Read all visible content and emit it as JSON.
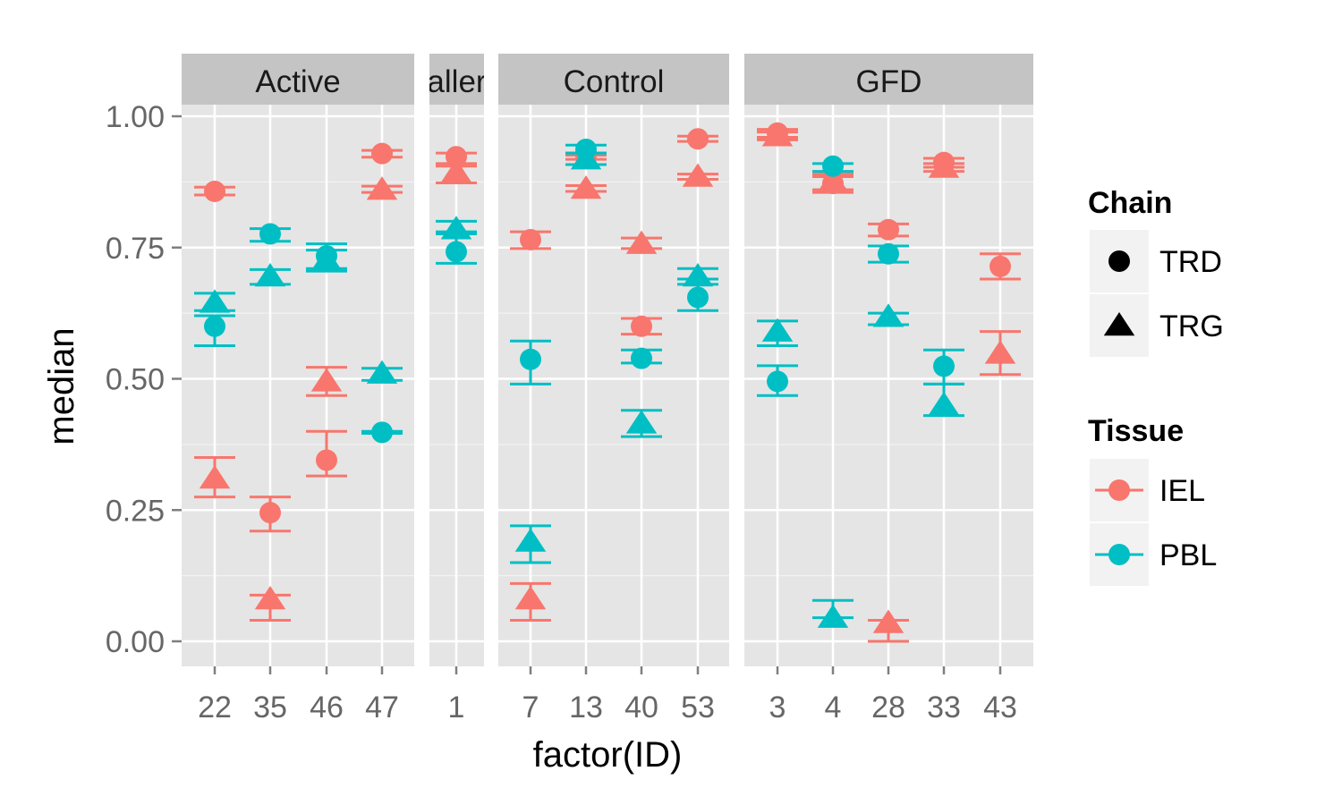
{
  "chart_data": {
    "type": "scatter",
    "title": "",
    "xlabel": "factor(ID)",
    "ylabel": "median",
    "ylim": [
      -0.05,
      1.1
    ],
    "yticks": [
      "0.00",
      "0.25",
      "0.50",
      "0.75",
      "1.00"
    ],
    "ytick_values": [
      0,
      0.25,
      0.5,
      0.75,
      1.0
    ],
    "grid": true,
    "legend_placement": "right",
    "colors": {
      "IEL": "#F8766D",
      "PBL": "#00BFC4"
    },
    "legends": [
      {
        "title": "Chain",
        "entries": [
          {
            "label": "TRD",
            "shape": "circle"
          },
          {
            "label": "TRG",
            "shape": "triangle"
          }
        ]
      },
      {
        "title": "Tissue",
        "entries": [
          {
            "label": "IEL",
            "color": "#F8766D"
          },
          {
            "label": "PBL",
            "color": "#00BFC4"
          }
        ]
      }
    ],
    "facets": [
      {
        "label": "Active",
        "categories": [
          "22",
          "35",
          "46",
          "47"
        ],
        "points": [
          {
            "id": "22",
            "chain": "TRD",
            "tissue": "IEL",
            "y": 0.857,
            "ymin": 0.85,
            "ymax": 0.865
          },
          {
            "id": "22",
            "chain": "TRG",
            "tissue": "IEL",
            "y": 0.31,
            "ymin": 0.275,
            "ymax": 0.35
          },
          {
            "id": "22",
            "chain": "TRD",
            "tissue": "PBL",
            "y": 0.6,
            "ymin": 0.563,
            "ymax": 0.62
          },
          {
            "id": "22",
            "chain": "TRG",
            "tissue": "PBL",
            "y": 0.645,
            "ymin": 0.63,
            "ymax": 0.663
          },
          {
            "id": "35",
            "chain": "TRD",
            "tissue": "IEL",
            "y": 0.245,
            "ymin": 0.21,
            "ymax": 0.275
          },
          {
            "id": "35",
            "chain": "TRG",
            "tissue": "IEL",
            "y": 0.08,
            "ymin": 0.04,
            "ymax": 0.088
          },
          {
            "id": "35",
            "chain": "TRD",
            "tissue": "PBL",
            "y": 0.776,
            "ymin": 0.762,
            "ymax": 0.786
          },
          {
            "id": "35",
            "chain": "TRG",
            "tissue": "PBL",
            "y": 0.695,
            "ymin": 0.68,
            "ymax": 0.708
          },
          {
            "id": "46",
            "chain": "TRD",
            "tissue": "IEL",
            "y": 0.345,
            "ymin": 0.315,
            "ymax": 0.4
          },
          {
            "id": "46",
            "chain": "TRG",
            "tissue": "IEL",
            "y": 0.495,
            "ymin": 0.468,
            "ymax": 0.522
          },
          {
            "id": "46",
            "chain": "TRD",
            "tissue": "PBL",
            "y": 0.734,
            "ymin": 0.71,
            "ymax": 0.757
          },
          {
            "id": "46",
            "chain": "TRG",
            "tissue": "PBL",
            "y": 0.725,
            "ymin": 0.705,
            "ymax": 0.745
          },
          {
            "id": "47",
            "chain": "TRD",
            "tissue": "IEL",
            "y": 0.929,
            "ymin": 0.922,
            "ymax": 0.935
          },
          {
            "id": "47",
            "chain": "TRG",
            "tissue": "IEL",
            "y": 0.86,
            "ymin": 0.855,
            "ymax": 0.867
          },
          {
            "id": "47",
            "chain": "TRD",
            "tissue": "PBL",
            "y": 0.398,
            "ymin": 0.396,
            "ymax": 0.4
          },
          {
            "id": "47",
            "chain": "TRG",
            "tissue": "PBL",
            "y": 0.51,
            "ymin": 0.497,
            "ymax": 0.52
          }
        ]
      },
      {
        "label": "aller",
        "categories": [
          "1"
        ],
        "points": [
          {
            "id": "1",
            "chain": "TRD",
            "tissue": "IEL",
            "y": 0.923,
            "ymin": 0.91,
            "ymax": 0.93
          },
          {
            "id": "1",
            "chain": "TRG",
            "tissue": "IEL",
            "y": 0.893,
            "ymin": 0.873,
            "ymax": 0.905
          },
          {
            "id": "1",
            "chain": "TRD",
            "tissue": "PBL",
            "y": 0.742,
            "ymin": 0.72,
            "ymax": 0.776
          },
          {
            "id": "1",
            "chain": "TRG",
            "tissue": "PBL",
            "y": 0.785,
            "ymin": 0.78,
            "ymax": 0.8
          }
        ]
      },
      {
        "label": "Control",
        "categories": [
          "7",
          "13",
          "40",
          "53"
        ],
        "points": [
          {
            "id": "7",
            "chain": "TRD",
            "tissue": "IEL",
            "y": 0.765,
            "ymin": 0.748,
            "ymax": 0.78
          },
          {
            "id": "7",
            "chain": "TRG",
            "tissue": "IEL",
            "y": 0.08,
            "ymin": 0.04,
            "ymax": 0.11
          },
          {
            "id": "7",
            "chain": "TRD",
            "tissue": "PBL",
            "y": 0.537,
            "ymin": 0.49,
            "ymax": 0.572
          },
          {
            "id": "7",
            "chain": "TRG",
            "tissue": "PBL",
            "y": 0.19,
            "ymin": 0.15,
            "ymax": 0.22
          },
          {
            "id": "13",
            "chain": "TRD",
            "tissue": "IEL",
            "y": 0.922,
            "ymin": 0.918,
            "ymax": 0.926
          },
          {
            "id": "13",
            "chain": "TRG",
            "tissue": "IEL",
            "y": 0.862,
            "ymin": 0.857,
            "ymax": 0.868
          },
          {
            "id": "13",
            "chain": "TRD",
            "tissue": "PBL",
            "y": 0.937,
            "ymin": 0.93,
            "ymax": 0.945
          },
          {
            "id": "13",
            "chain": "TRG",
            "tissue": "PBL",
            "y": 0.918,
            "ymin": 0.908,
            "ymax": 0.93
          },
          {
            "id": "40",
            "chain": "TRD",
            "tissue": "IEL",
            "y": 0.6,
            "ymin": 0.585,
            "ymax": 0.615
          },
          {
            "id": "40",
            "chain": "TRG",
            "tissue": "IEL",
            "y": 0.757,
            "ymin": 0.748,
            "ymax": 0.768
          },
          {
            "id": "40",
            "chain": "TRD",
            "tissue": "PBL",
            "y": 0.539,
            "ymin": 0.53,
            "ymax": 0.555
          },
          {
            "id": "40",
            "chain": "TRG",
            "tissue": "PBL",
            "y": 0.415,
            "ymin": 0.39,
            "ymax": 0.44
          },
          {
            "id": "53",
            "chain": "TRD",
            "tissue": "IEL",
            "y": 0.957,
            "ymin": 0.952,
            "ymax": 0.962
          },
          {
            "id": "53",
            "chain": "TRG",
            "tissue": "IEL",
            "y": 0.885,
            "ymin": 0.88,
            "ymax": 0.89
          },
          {
            "id": "53",
            "chain": "TRD",
            "tissue": "PBL",
            "y": 0.655,
            "ymin": 0.63,
            "ymax": 0.68
          },
          {
            "id": "53",
            "chain": "TRG",
            "tissue": "PBL",
            "y": 0.695,
            "ymin": 0.69,
            "ymax": 0.71
          }
        ]
      },
      {
        "label": "GFD",
        "categories": [
          "3",
          "4",
          "28",
          "33",
          "43"
        ],
        "points": [
          {
            "id": "3",
            "chain": "TRD",
            "tissue": "IEL",
            "y": 0.968,
            "ymin": 0.96,
            "ymax": 0.975
          },
          {
            "id": "3",
            "chain": "TRG",
            "tissue": "IEL",
            "y": 0.962,
            "ymin": 0.955,
            "ymax": 0.97
          },
          {
            "id": "3",
            "chain": "TRD",
            "tissue": "PBL",
            "y": 0.495,
            "ymin": 0.468,
            "ymax": 0.525
          },
          {
            "id": "3",
            "chain": "TRG",
            "tissue": "PBL",
            "y": 0.59,
            "ymin": 0.563,
            "ymax": 0.61
          },
          {
            "id": "4",
            "chain": "TRD",
            "tissue": "IEL",
            "y": 0.872,
            "ymin": 0.855,
            "ymax": 0.885
          },
          {
            "id": "4",
            "chain": "TRG",
            "tissue": "IEL",
            "y": 0.875,
            "ymin": 0.86,
            "ymax": 0.89
          },
          {
            "id": "4",
            "chain": "TRD",
            "tissue": "PBL",
            "y": 0.905,
            "ymin": 0.895,
            "ymax": 0.91
          },
          {
            "id": "4",
            "chain": "TRG",
            "tissue": "PBL",
            "y": 0.045,
            "ymin": 0.045,
            "ymax": 0.078
          },
          {
            "id": "28",
            "chain": "TRD",
            "tissue": "IEL",
            "y": 0.784,
            "ymin": 0.772,
            "ymax": 0.795
          },
          {
            "id": "28",
            "chain": "TRG",
            "tissue": "IEL",
            "y": 0.035,
            "ymin": 0.0,
            "ymax": 0.04
          },
          {
            "id": "28",
            "chain": "TRD",
            "tissue": "PBL",
            "y": 0.738,
            "ymin": 0.722,
            "ymax": 0.753
          },
          {
            "id": "28",
            "chain": "TRG",
            "tissue": "PBL",
            "y": 0.618,
            "ymin": 0.603,
            "ymax": 0.625
          },
          {
            "id": "33",
            "chain": "TRD",
            "tissue": "IEL",
            "y": 0.912,
            "ymin": 0.903,
            "ymax": 0.92
          },
          {
            "id": "33",
            "chain": "TRG",
            "tissue": "IEL",
            "y": 0.902,
            "ymin": 0.895,
            "ymax": 0.91
          },
          {
            "id": "33",
            "chain": "TRD",
            "tissue": "PBL",
            "y": 0.524,
            "ymin": 0.49,
            "ymax": 0.555
          },
          {
            "id": "33",
            "chain": "TRG",
            "tissue": "PBL",
            "y": 0.45,
            "ymin": 0.43,
            "ymax": 0.49
          },
          {
            "id": "43",
            "chain": "TRD",
            "tissue": "IEL",
            "y": 0.714,
            "ymin": 0.69,
            "ymax": 0.738
          },
          {
            "id": "43",
            "chain": "TRG",
            "tissue": "IEL",
            "y": 0.548,
            "ymin": 0.508,
            "ymax": 0.59
          }
        ]
      }
    ]
  }
}
